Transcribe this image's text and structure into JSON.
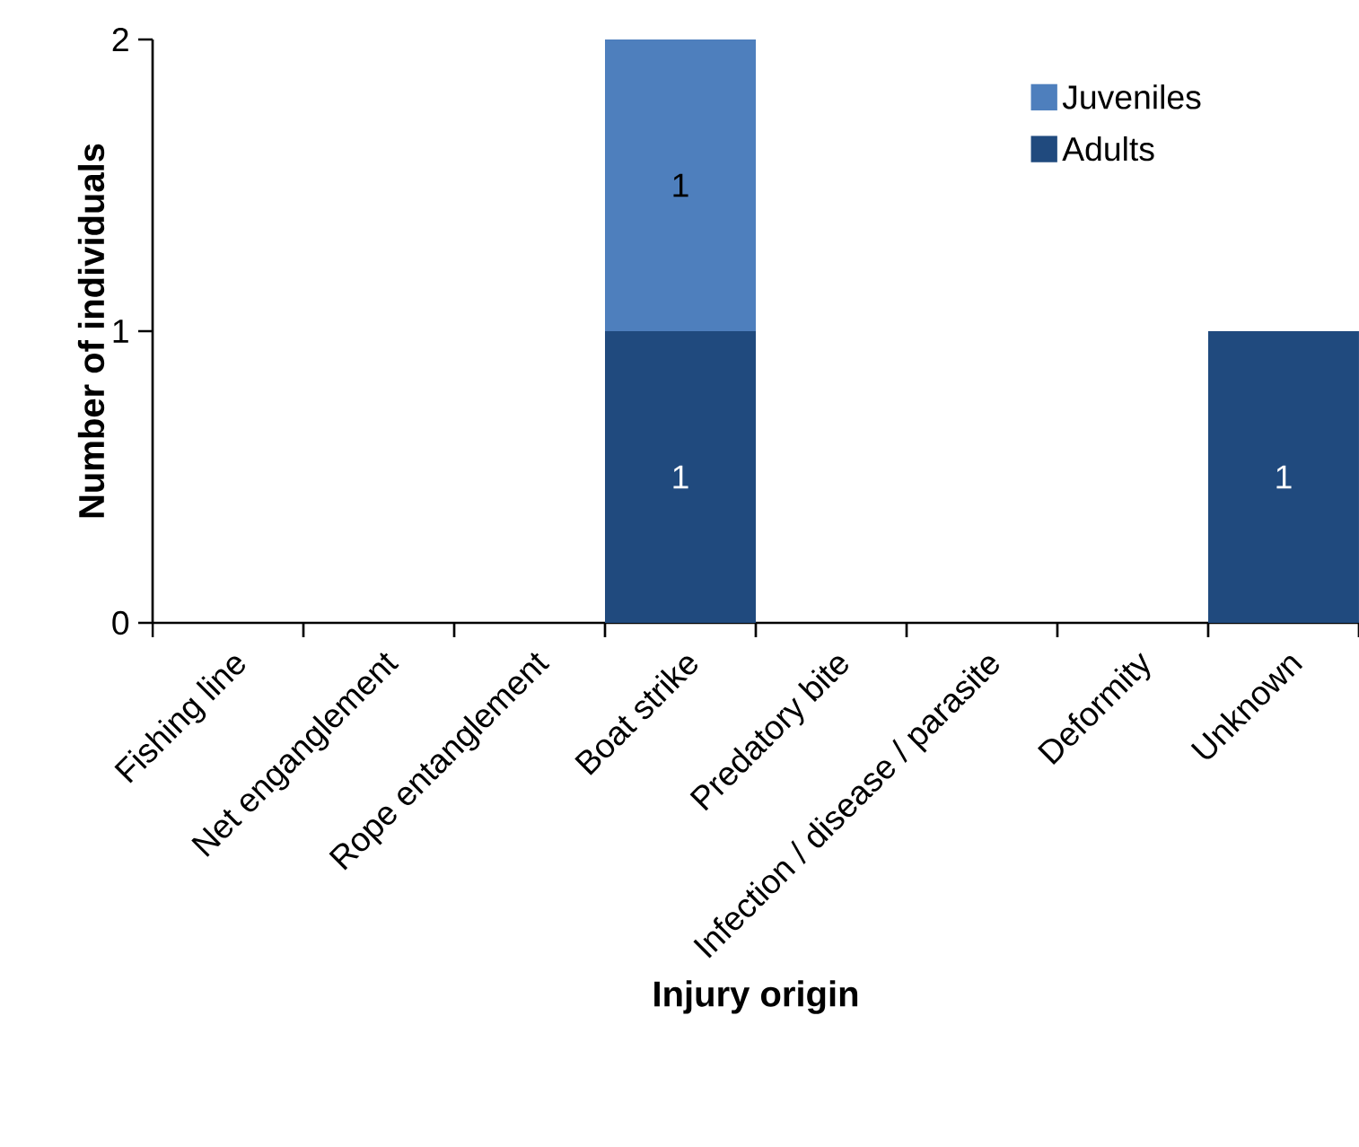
{
  "chart_data": {
    "type": "bar",
    "stacked": true,
    "xlabel": "Injury origin",
    "ylabel": "Number of individuals",
    "categories": [
      "Fishing line",
      "Net enganglement",
      "Rope entanglement",
      "Boat strike",
      "Predatory bite",
      "Infection / disease / parasite",
      "Deformity",
      "Unknown"
    ],
    "series": [
      {
        "name": "Adults",
        "color": "#204a7e",
        "values": [
          0,
          0,
          0,
          1,
          0,
          0,
          0,
          1
        ],
        "value_labels": [
          null,
          null,
          null,
          "1",
          null,
          null,
          null,
          "1"
        ]
      },
      {
        "name": "Juveniles",
        "color": "#4e7fbd",
        "values": [
          0,
          0,
          0,
          1,
          0,
          0,
          0,
          0
        ],
        "value_labels": [
          null,
          null,
          null,
          "1",
          null,
          null,
          null,
          null
        ]
      }
    ],
    "ylim": [
      0,
      2
    ],
    "yticks": [
      0,
      1,
      2
    ],
    "legend": "top right",
    "grid": false
  }
}
